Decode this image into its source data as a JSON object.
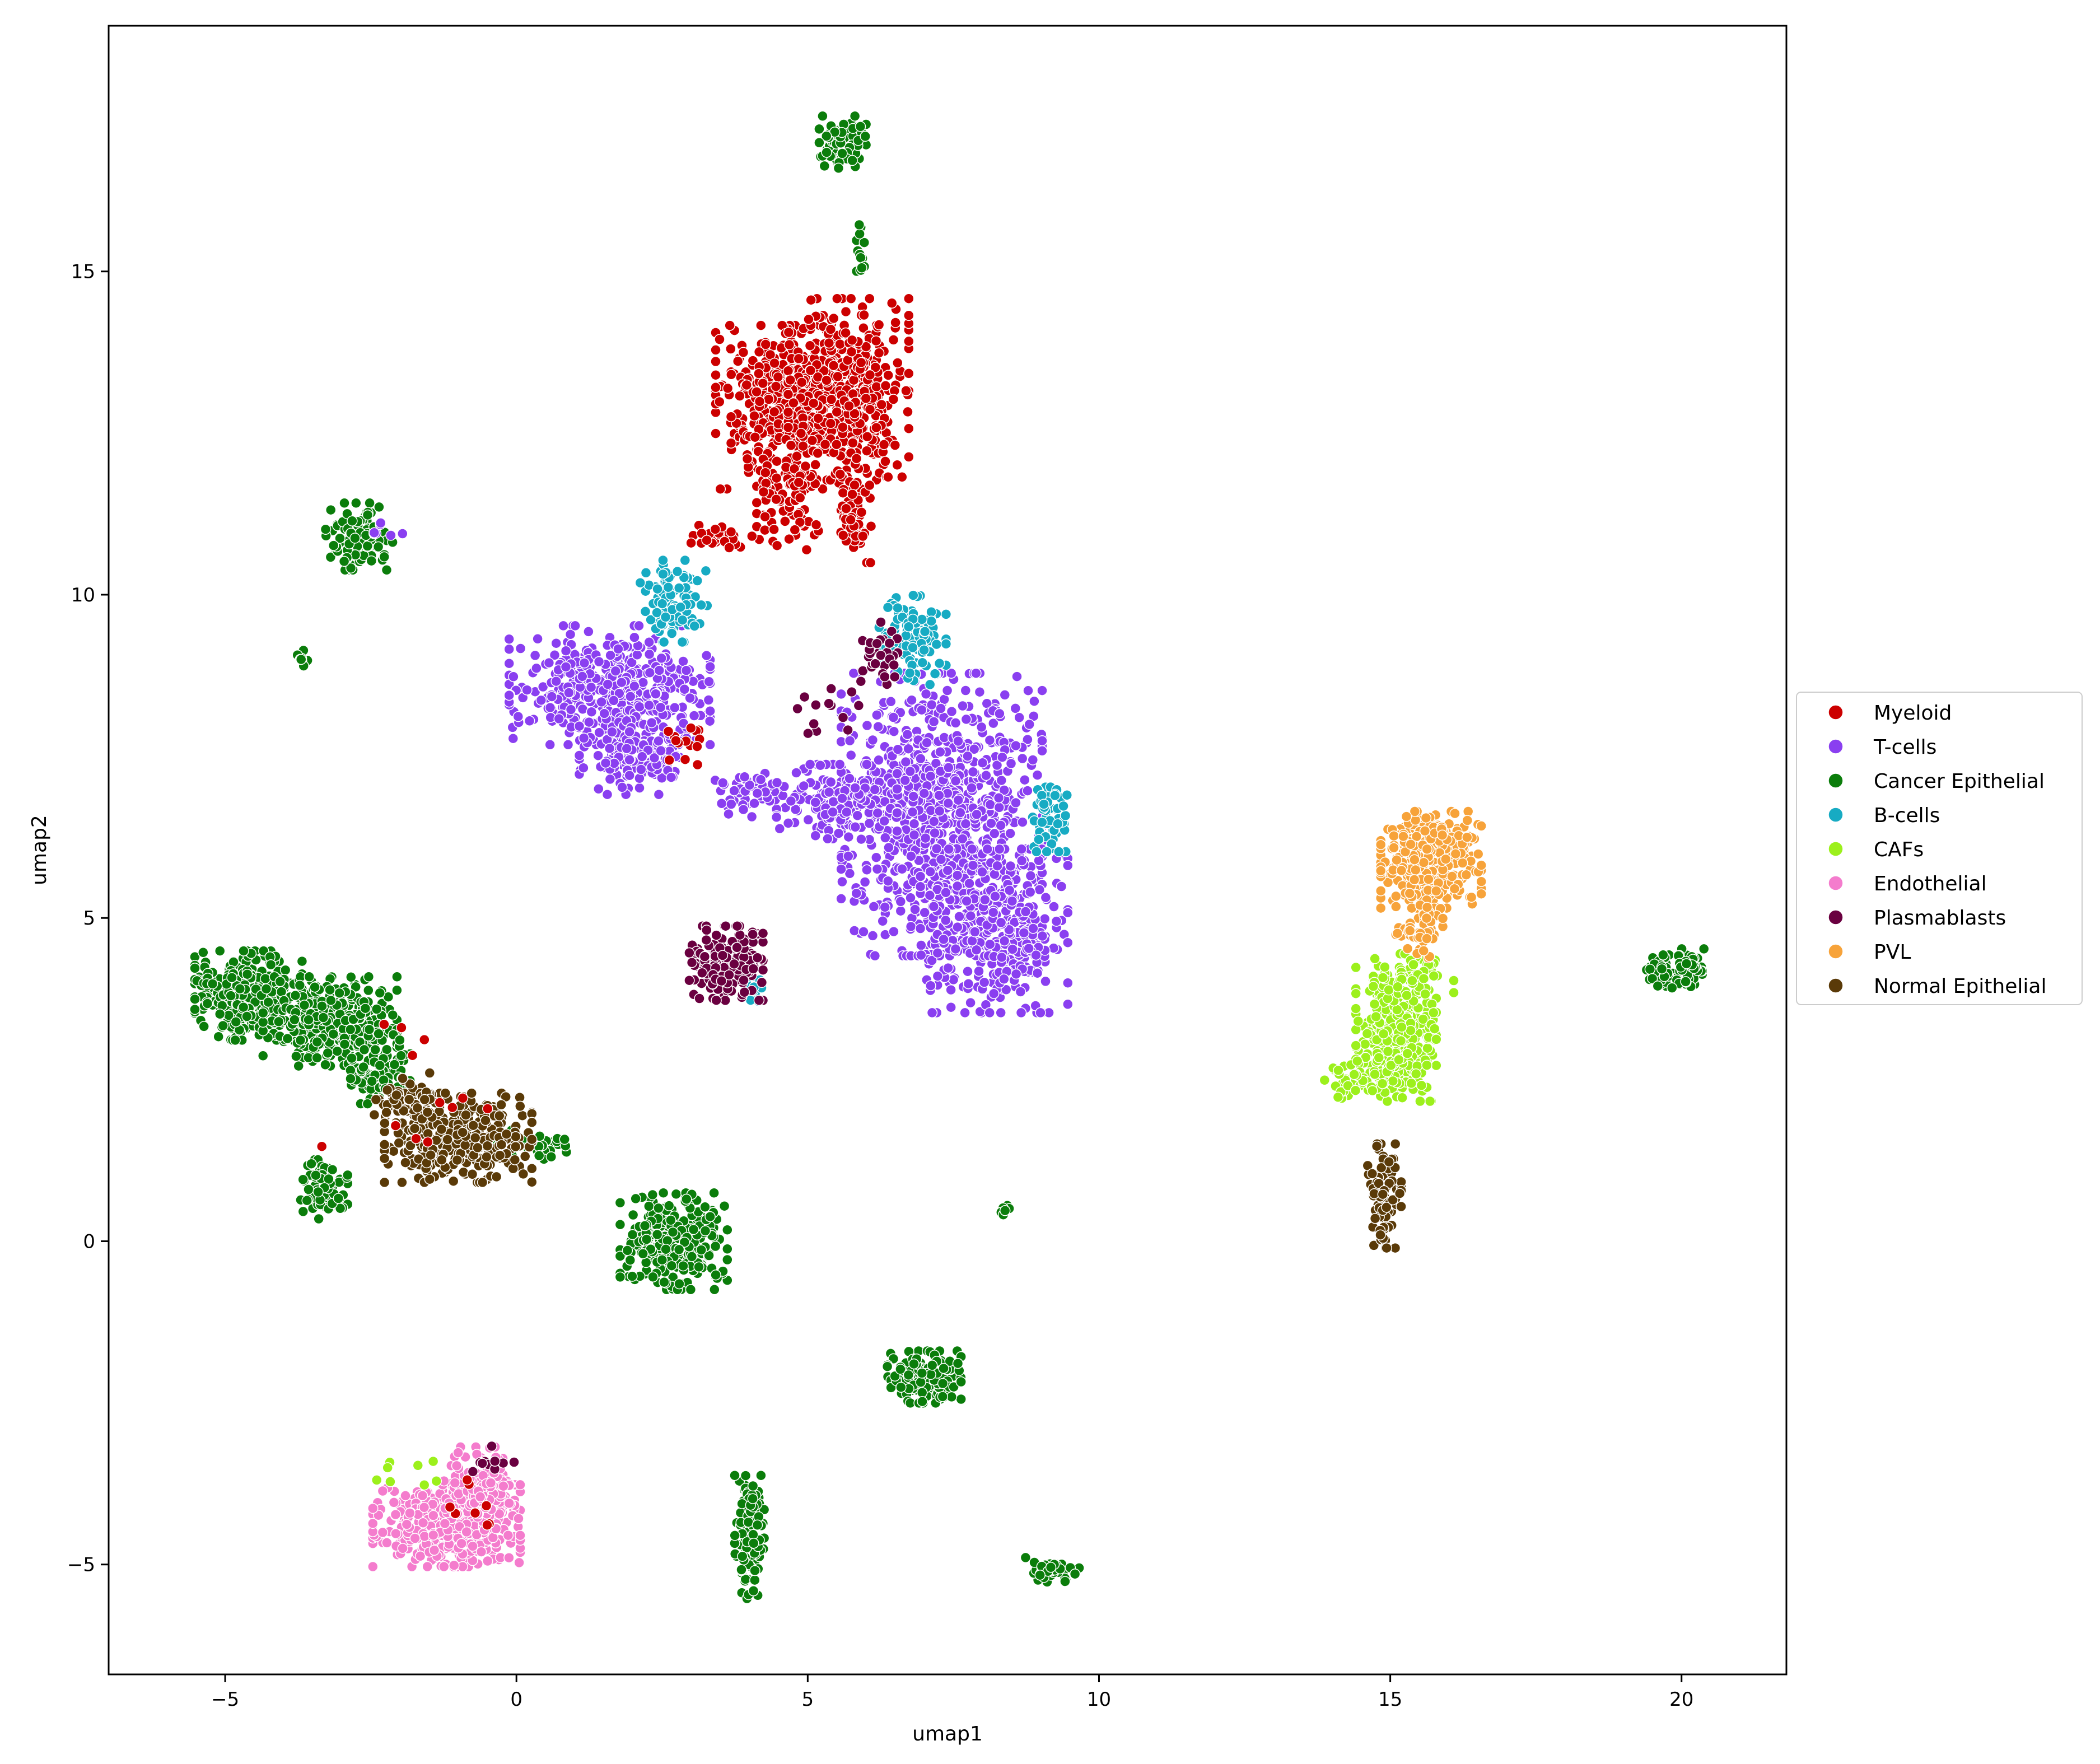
{
  "chart_data": {
    "type": "scatter",
    "title": "",
    "xlabel": "umap1",
    "ylabel": "umap2",
    "xlim": [
      -7.0,
      21.8
    ],
    "ylim": [
      -6.7,
      18.8
    ],
    "xticks": [
      -5,
      0,
      5,
      10,
      15,
      20
    ],
    "yticks": [
      -5,
      0,
      5,
      10,
      15
    ],
    "xtick_labels": [
      "−5",
      "0",
      "5",
      "10",
      "15",
      "20"
    ],
    "ytick_labels": [
      "−5",
      "0",
      "5",
      "10",
      "15"
    ],
    "grid": false,
    "legend_position": "right-center",
    "series": [
      {
        "name": "Myeloid",
        "color": "#cc0000"
      },
      {
        "name": "T-cells",
        "color": "#8a3ff0"
      },
      {
        "name": "Cancer Epithelial",
        "color": "#0b7d0b"
      },
      {
        "name": "B-cells",
        "color": "#17abc3"
      },
      {
        "name": "CAFs",
        "color": "#9cf01c"
      },
      {
        "name": "Endothelial",
        "color": "#f47ccd"
      },
      {
        "name": "Plasmablasts",
        "color": "#6a0040"
      },
      {
        "name": "PVL",
        "color": "#f7a33a"
      },
      {
        "name": "Normal Epithelial",
        "color": "#5a3a08"
      }
    ],
    "clusters": [
      {
        "series": "Myeloid",
        "x": 4.8,
        "y": 12.9,
        "rx": 1.2,
        "ry": 1.1,
        "n": 520
      },
      {
        "series": "Myeloid",
        "x": 5.7,
        "y": 13.2,
        "rx": 0.9,
        "ry": 1.2,
        "n": 320
      },
      {
        "series": "Myeloid",
        "x": 4.7,
        "y": 11.5,
        "rx": 0.5,
        "ry": 0.7,
        "n": 80
      },
      {
        "series": "Myeloid",
        "x": 5.8,
        "y": 11.3,
        "rx": 0.25,
        "ry": 0.7,
        "n": 60
      },
      {
        "series": "Myeloid",
        "x": 3.6,
        "y": 10.9,
        "rx": 0.6,
        "ry": 0.15,
        "n": 30
      },
      {
        "series": "T-cells",
        "x": 1.6,
        "y": 8.6,
        "rx": 1.5,
        "ry": 0.8,
        "n": 420
      },
      {
        "series": "T-cells",
        "x": 2.0,
        "y": 7.6,
        "rx": 0.8,
        "ry": 0.6,
        "n": 180
      },
      {
        "series": "T-cells",
        "x": 7.3,
        "y": 6.6,
        "rx": 1.5,
        "ry": 1.9,
        "n": 900
      },
      {
        "series": "T-cells",
        "x": 8.2,
        "y": 4.8,
        "rx": 1.1,
        "ry": 1.1,
        "n": 380
      },
      {
        "series": "T-cells",
        "x": 5.5,
        "y": 6.8,
        "rx": 0.9,
        "ry": 0.5,
        "n": 160
      },
      {
        "series": "T-cells",
        "x": 4.0,
        "y": 6.9,
        "rx": 0.7,
        "ry": 0.3,
        "n": 60
      },
      {
        "series": "Cancer Epithelial",
        "x": -4.6,
        "y": 3.8,
        "rx": 0.8,
        "ry": 0.6,
        "n": 340
      },
      {
        "series": "Cancer Epithelial",
        "x": -3.2,
        "y": 3.4,
        "rx": 1.0,
        "ry": 0.6,
        "n": 300
      },
      {
        "series": "Cancer Epithelial",
        "x": -2.4,
        "y": 2.7,
        "rx": 0.5,
        "ry": 0.5,
        "n": 110
      },
      {
        "series": "Cancer Epithelial",
        "x": -3.3,
        "y": 0.8,
        "rx": 0.35,
        "ry": 0.4,
        "n": 90
      },
      {
        "series": "Cancer Epithelial",
        "x": 0.3,
        "y": 1.5,
        "rx": 0.6,
        "ry": 0.2,
        "n": 40
      },
      {
        "series": "Cancer Epithelial",
        "x": 2.7,
        "y": 0.0,
        "rx": 0.8,
        "ry": 0.65,
        "n": 300
      },
      {
        "series": "Cancer Epithelial",
        "x": 5.6,
        "y": 17.0,
        "rx": 0.35,
        "ry": 0.35,
        "n": 80
      },
      {
        "series": "Cancer Epithelial",
        "x": 5.9,
        "y": 15.3,
        "rx": 0.08,
        "ry": 0.5,
        "n": 14
      },
      {
        "series": "Cancer Epithelial",
        "x": -2.7,
        "y": 10.9,
        "rx": 0.5,
        "ry": 0.45,
        "n": 120
      },
      {
        "series": "Cancer Epithelial",
        "x": -3.7,
        "y": 9.0,
        "rx": 0.1,
        "ry": 0.12,
        "n": 10
      },
      {
        "series": "Cancer Epithelial",
        "x": 7.0,
        "y": -2.1,
        "rx": 0.55,
        "ry": 0.35,
        "n": 160
      },
      {
        "series": "Cancer Epithelial",
        "x": 4.0,
        "y": -4.6,
        "rx": 0.22,
        "ry": 0.85,
        "n": 120
      },
      {
        "series": "Cancer Epithelial",
        "x": 9.2,
        "y": -5.1,
        "rx": 0.4,
        "ry": 0.18,
        "n": 40
      },
      {
        "series": "Cancer Epithelial",
        "x": 8.4,
        "y": 0.5,
        "rx": 0.08,
        "ry": 0.1,
        "n": 6
      },
      {
        "series": "Cancer Epithelial",
        "x": 19.9,
        "y": 4.2,
        "rx": 0.5,
        "ry": 0.28,
        "n": 90
      },
      {
        "series": "B-cells",
        "x": 2.7,
        "y": 9.9,
        "rx": 0.5,
        "ry": 0.55,
        "n": 90
      },
      {
        "series": "B-cells",
        "x": 6.8,
        "y": 9.3,
        "rx": 0.5,
        "ry": 0.6,
        "n": 110
      },
      {
        "series": "B-cells",
        "x": 9.2,
        "y": 6.6,
        "rx": 0.3,
        "ry": 0.5,
        "n": 60
      },
      {
        "series": "B-cells",
        "x": 4.1,
        "y": 4.0,
        "rx": 0.2,
        "ry": 0.25,
        "n": 14
      },
      {
        "series": "CAFs",
        "x": 15.1,
        "y": 3.2,
        "rx": 0.6,
        "ry": 0.9,
        "n": 380
      },
      {
        "series": "CAFs",
        "x": 14.4,
        "y": 2.5,
        "rx": 0.5,
        "ry": 0.25,
        "n": 40
      },
      {
        "series": "CAFs",
        "x": 15.4,
        "y": 4.1,
        "rx": 0.6,
        "ry": 0.3,
        "n": 60
      },
      {
        "series": "Endothelial",
        "x": -1.2,
        "y": -4.4,
        "rx": 1.1,
        "ry": 0.55,
        "n": 520
      },
      {
        "series": "Endothelial",
        "x": -0.7,
        "y": -3.7,
        "rx": 0.5,
        "ry": 0.45,
        "n": 120
      },
      {
        "series": "Plasmablasts",
        "x": 3.6,
        "y": 4.3,
        "rx": 0.55,
        "ry": 0.5,
        "n": 200
      },
      {
        "series": "Plasmablasts",
        "x": 6.2,
        "y": 9.0,
        "rx": 0.3,
        "ry": 0.5,
        "n": 30
      },
      {
        "series": "Plasmablasts",
        "x": 5.3,
        "y": 8.2,
        "rx": 0.5,
        "ry": 0.3,
        "n": 14
      },
      {
        "series": "PVL",
        "x": 15.7,
        "y": 5.9,
        "rx": 0.75,
        "ry": 0.65,
        "n": 360
      },
      {
        "series": "PVL",
        "x": 15.5,
        "y": 4.9,
        "rx": 0.35,
        "ry": 0.45,
        "n": 60
      },
      {
        "series": "Normal Epithelial",
        "x": -1.0,
        "y": 1.6,
        "rx": 1.1,
        "ry": 0.6,
        "n": 320
      },
      {
        "series": "Normal Epithelial",
        "x": -1.9,
        "y": 2.2,
        "rx": 0.5,
        "ry": 0.35,
        "n": 60
      },
      {
        "series": "Normal Epithelial",
        "x": 14.9,
        "y": 0.7,
        "rx": 0.25,
        "ry": 0.7,
        "n": 80
      },
      {
        "series": "Myeloid",
        "x": -1.5,
        "y": 2.5,
        "rx": 1.6,
        "ry": 1.2,
        "n": 12
      },
      {
        "series": "CAFs",
        "x": -1.8,
        "y": -3.6,
        "rx": 0.6,
        "ry": 0.3,
        "n": 8
      },
      {
        "series": "Myeloid",
        "x": -0.8,
        "y": -4.2,
        "rx": 0.8,
        "ry": 0.5,
        "n": 8
      },
      {
        "series": "Plasmablasts",
        "x": -0.5,
        "y": -3.4,
        "rx": 0.4,
        "ry": 0.2,
        "n": 10
      },
      {
        "series": "T-cells",
        "x": -2.3,
        "y": 11.0,
        "rx": 0.3,
        "ry": 0.2,
        "n": 8
      },
      {
        "series": "Myeloid",
        "x": 2.9,
        "y": 7.7,
        "rx": 0.4,
        "ry": 0.4,
        "n": 14
      }
    ]
  }
}
